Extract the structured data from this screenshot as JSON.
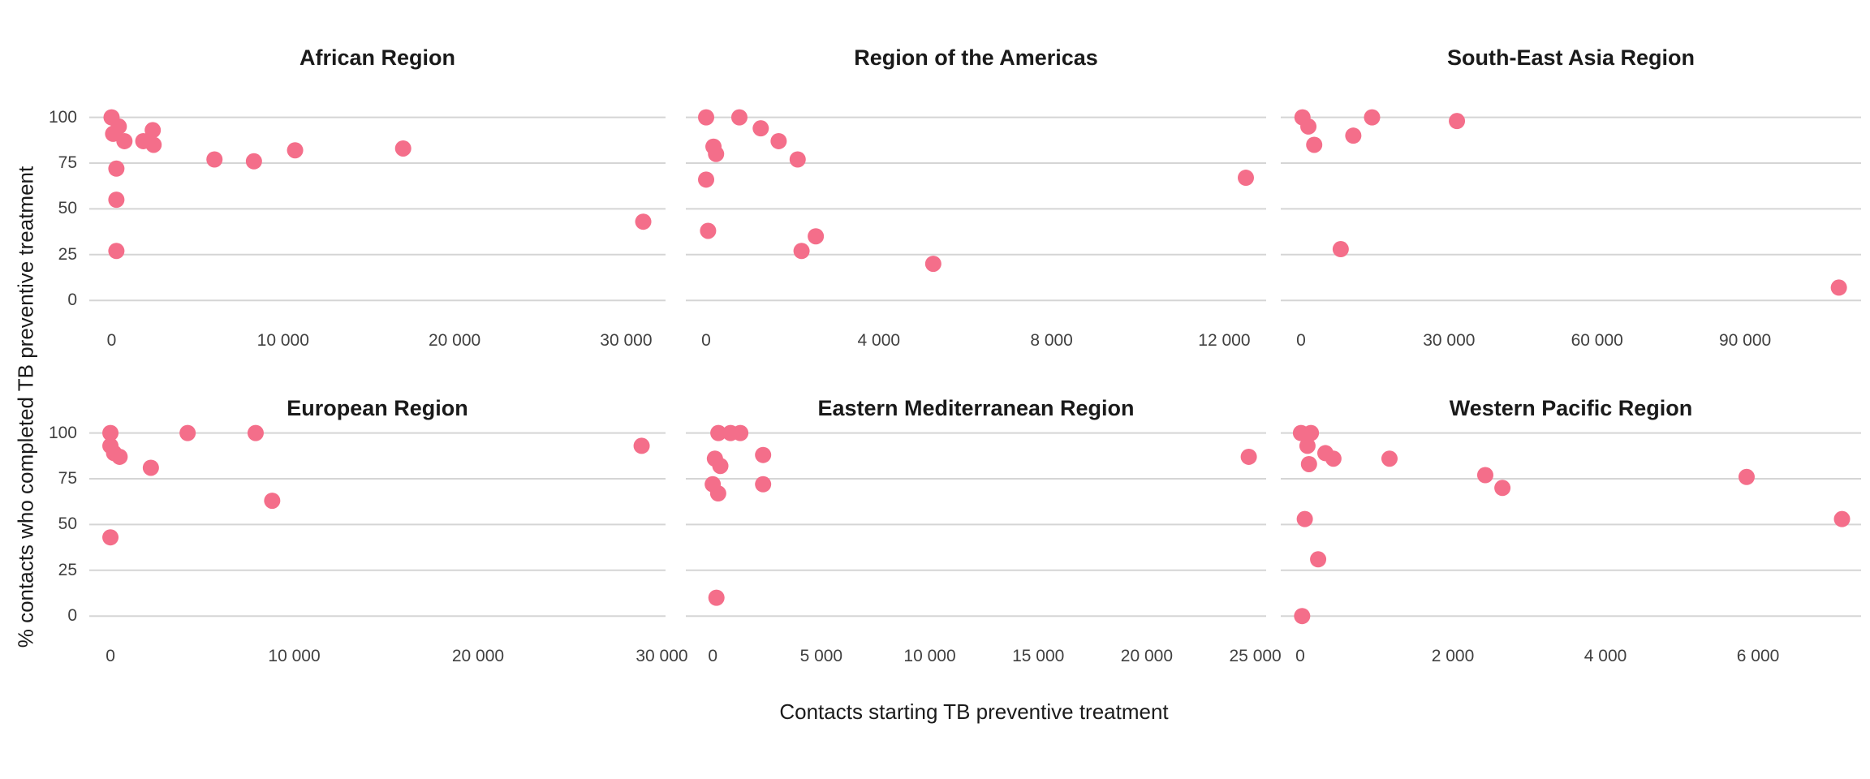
{
  "y_axis_title": "% contacts who completed TB preventive treatment",
  "x_axis_title": "Contacts starting TB preventive treatment",
  "colors": {
    "point": "#F46E8A",
    "gridline": "#D5D5D5",
    "facet_title": "#1A1A1A",
    "tick_label": "#404040",
    "axis_title": "#1A1A1A",
    "background": "#FFFFFF"
  },
  "y_ticks": {
    "values": [
      0,
      25,
      50,
      75,
      100
    ],
    "labels": [
      "0",
      "25",
      "50",
      "75",
      "100"
    ]
  },
  "chart_data": [
    {
      "type": "scatter",
      "title": "African Region",
      "xlabel": "Contacts starting TB preventive treatment",
      "ylabel": "% contacts who completed TB preventive treatment",
      "ylim": [
        0,
        100
      ],
      "xlim": [
        -1300,
        32300
      ],
      "xticks": [
        0,
        10000,
        20000,
        30000
      ],
      "xtick_labels": [
        "0",
        "10 000",
        "20 000",
        "30 000"
      ],
      "points": [
        [
          0,
          100
        ],
        [
          420,
          95
        ],
        [
          90,
          91
        ],
        [
          750,
          87
        ],
        [
          1850,
          87
        ],
        [
          2400,
          93
        ],
        [
          2450,
          85
        ],
        [
          280,
          72
        ],
        [
          280,
          55
        ],
        [
          280,
          27
        ],
        [
          6000,
          77
        ],
        [
          8300,
          76
        ],
        [
          10700,
          82
        ],
        [
          17000,
          83
        ],
        [
          31000,
          43
        ]
      ]
    },
    {
      "type": "scatter",
      "title": "Region of the Americas",
      "xlabel": "Contacts starting TB preventive treatment",
      "ylabel": "% contacts who completed TB preventive treatment",
      "ylim": [
        0,
        100
      ],
      "xlim": [
        -470,
        12970
      ],
      "xticks": [
        0,
        4000,
        8000,
        12000
      ],
      "xtick_labels": [
        "0",
        "4 000",
        "8 000",
        "12 000"
      ],
      "points": [
        [
          0,
          100
        ],
        [
          770,
          100
        ],
        [
          1265,
          94
        ],
        [
          1680,
          87
        ],
        [
          170,
          84
        ],
        [
          230,
          80
        ],
        [
          2120,
          77
        ],
        [
          0,
          66
        ],
        [
          45,
          38
        ],
        [
          2540,
          35
        ],
        [
          2210,
          27
        ],
        [
          5260,
          20
        ],
        [
          12500,
          67
        ]
      ]
    },
    {
      "type": "scatter",
      "title": "South-East Asia Region",
      "xlabel": "Contacts starting TB preventive treatment",
      "ylabel": "% contacts who completed TB preventive treatment",
      "ylim": [
        0,
        100
      ],
      "xlim": [
        -4100,
        113500
      ],
      "xticks": [
        0,
        30000,
        60000,
        90000
      ],
      "xtick_labels": [
        "0",
        "30 000",
        "60 000",
        "90 000"
      ],
      "points": [
        [
          300,
          100
        ],
        [
          1500,
          95
        ],
        [
          2680,
          85
        ],
        [
          10600,
          90
        ],
        [
          14400,
          100
        ],
        [
          31600,
          98
        ],
        [
          8050,
          28
        ],
        [
          109000,
          7
        ]
      ]
    },
    {
      "type": "scatter",
      "title": "European Region",
      "xlabel": "Contacts starting TB preventive treatment",
      "ylabel": "% contacts who completed TB preventive treatment",
      "ylim": [
        0,
        100
      ],
      "xlim": [
        -1150,
        30200
      ],
      "xticks": [
        0,
        10000,
        20000,
        30000
      ],
      "xtick_labels": [
        "0",
        "10 000",
        "20 000",
        "30 000"
      ],
      "points": [
        [
          0,
          100
        ],
        [
          0,
          93
        ],
        [
          200,
          89
        ],
        [
          500,
          87
        ],
        [
          2200,
          81
        ],
        [
          4200,
          100
        ],
        [
          7900,
          100
        ],
        [
          8800,
          63
        ],
        [
          0,
          43
        ],
        [
          28900,
          93
        ]
      ]
    },
    {
      "type": "scatter",
      "title": "Eastern Mediterranean Region",
      "xlabel": "Contacts starting TB preventive treatment",
      "ylabel": "% contacts who completed TB preventive treatment",
      "ylim": [
        0,
        100
      ],
      "xlim": [
        -1240,
        25500
      ],
      "xticks": [
        0,
        5000,
        10000,
        15000,
        20000,
        25000
      ],
      "xtick_labels": [
        "0",
        "5 000",
        "10 000",
        "15 000",
        "20 000",
        "25 000"
      ],
      "points": [
        [
          260,
          100
        ],
        [
          820,
          100
        ],
        [
          1270,
          100
        ],
        [
          100,
          86
        ],
        [
          350,
          82
        ],
        [
          2320,
          88
        ],
        [
          2320,
          72
        ],
        [
          0,
          72
        ],
        [
          250,
          67
        ],
        [
          170,
          10
        ],
        [
          24700,
          87
        ]
      ]
    },
    {
      "type": "scatter",
      "title": "Western Pacific Region",
      "xlabel": "Contacts starting TB preventive treatment",
      "ylabel": "% contacts who completed TB preventive treatment",
      "ylim": [
        0,
        100
      ],
      "xlim": [
        -255,
        7350
      ],
      "xticks": [
        0,
        2000,
        4000,
        6000
      ],
      "xtick_labels": [
        "0",
        "2 000",
        "4 000",
        "6 000"
      ],
      "points": [
        [
          10,
          100
        ],
        [
          140,
          100
        ],
        [
          95,
          93
        ],
        [
          115,
          83
        ],
        [
          330,
          89
        ],
        [
          435,
          86
        ],
        [
          1170,
          86
        ],
        [
          2425,
          77
        ],
        [
          2650,
          70
        ],
        [
          5850,
          76
        ],
        [
          60,
          53
        ],
        [
          235,
          31
        ],
        [
          25,
          0
        ],
        [
          7100,
          53
        ]
      ]
    }
  ]
}
